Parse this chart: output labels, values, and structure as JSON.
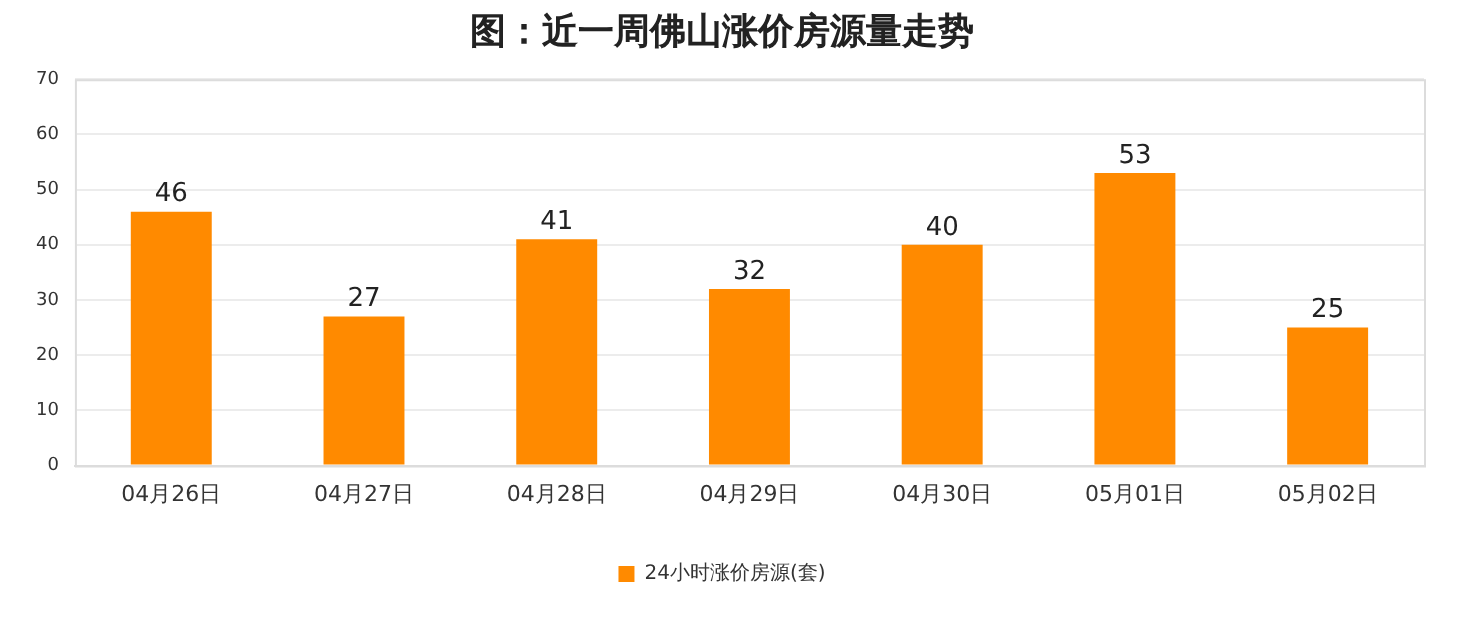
{
  "chart_data": {
    "type": "bar",
    "title": "图：近一周佛山涨价房源量走势",
    "categories": [
      "04月26日",
      "04月27日",
      "04月28日",
      "04月29日",
      "04月30日",
      "05月01日",
      "05月02日"
    ],
    "series": [
      {
        "name": "24小时涨价房源(套)",
        "color": "#ff8a00",
        "values": [
          46,
          27,
          41,
          32,
          40,
          53,
          25
        ]
      }
    ],
    "ylim": [
      0,
      70
    ],
    "yticks": [
      0,
      10,
      20,
      30,
      40,
      50,
      60,
      70
    ],
    "grid": "y",
    "legend": "bottom",
    "data_labels": true
  }
}
